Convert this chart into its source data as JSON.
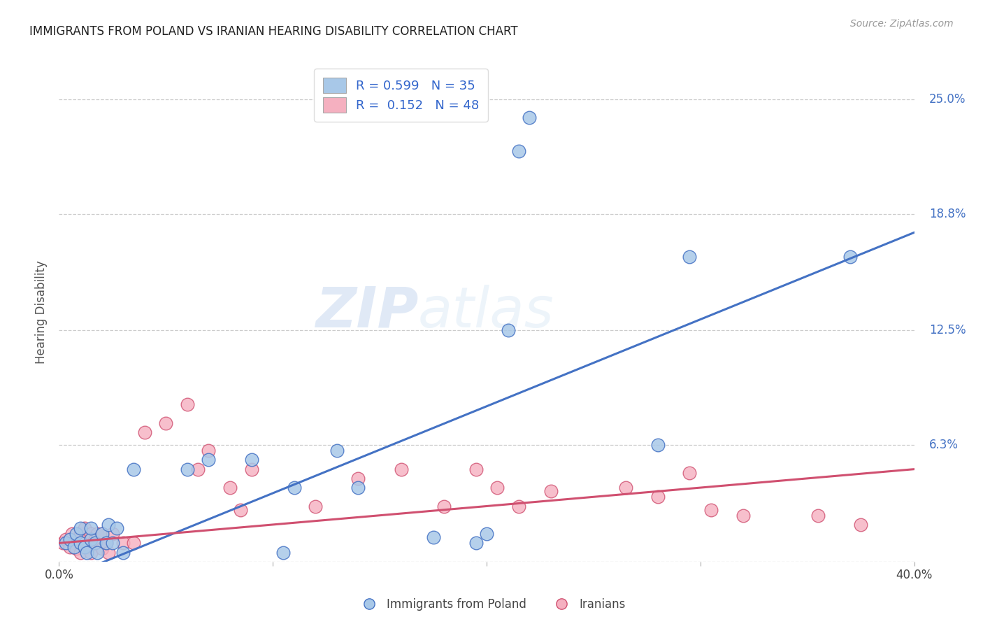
{
  "title": "IMMIGRANTS FROM POLAND VS IRANIAN HEARING DISABILITY CORRELATION CHART",
  "source": "Source: ZipAtlas.com",
  "xlabel_blue": "Immigrants from Poland",
  "xlabel_pink": "Iranians",
  "ylabel": "Hearing Disability",
  "r_blue": 0.599,
  "n_blue": 35,
  "r_pink": 0.152,
  "n_pink": 48,
  "xlim": [
    0.0,
    0.4
  ],
  "ylim": [
    0.0,
    0.27
  ],
  "yticks": [
    0.0,
    0.063,
    0.125,
    0.188,
    0.25
  ],
  "ytick_labels": [
    "",
    "6.3%",
    "12.5%",
    "18.8%",
    "25.0%"
  ],
  "xticks": [
    0.0,
    0.1,
    0.2,
    0.3,
    0.4
  ],
  "xtick_labels": [
    "0.0%",
    "",
    "",
    "",
    "40.0%"
  ],
  "color_blue": "#a8c8e8",
  "color_pink": "#f5b0c0",
  "line_color_blue": "#4472c4",
  "line_color_pink": "#d05070",
  "watermark_zip": "ZIP",
  "watermark_atlas": "atlas",
  "blue_x": [
    0.003,
    0.005,
    0.007,
    0.008,
    0.01,
    0.01,
    0.012,
    0.013,
    0.015,
    0.015,
    0.017,
    0.018,
    0.02,
    0.022,
    0.023,
    0.025,
    0.027,
    0.03,
    0.035,
    0.06,
    0.07,
    0.09,
    0.105,
    0.11,
    0.13,
    0.14,
    0.175,
    0.195,
    0.2,
    0.21,
    0.215,
    0.22,
    0.28,
    0.295,
    0.37
  ],
  "blue_y": [
    0.01,
    0.012,
    0.008,
    0.015,
    0.01,
    0.018,
    0.008,
    0.005,
    0.012,
    0.018,
    0.01,
    0.005,
    0.015,
    0.01,
    0.02,
    0.01,
    0.018,
    0.005,
    0.05,
    0.05,
    0.055,
    0.055,
    0.005,
    0.04,
    0.06,
    0.04,
    0.013,
    0.01,
    0.015,
    0.125,
    0.222,
    0.24,
    0.063,
    0.165,
    0.165
  ],
  "pink_x": [
    0.002,
    0.003,
    0.005,
    0.006,
    0.007,
    0.008,
    0.009,
    0.01,
    0.01,
    0.011,
    0.012,
    0.013,
    0.014,
    0.015,
    0.015,
    0.016,
    0.017,
    0.018,
    0.02,
    0.02,
    0.022,
    0.023,
    0.025,
    0.03,
    0.035,
    0.04,
    0.05,
    0.06,
    0.065,
    0.07,
    0.08,
    0.085,
    0.09,
    0.12,
    0.14,
    0.16,
    0.18,
    0.195,
    0.205,
    0.215,
    0.23,
    0.265,
    0.28,
    0.295,
    0.305,
    0.32,
    0.355,
    0.375
  ],
  "pink_y": [
    0.01,
    0.012,
    0.008,
    0.015,
    0.01,
    0.007,
    0.012,
    0.005,
    0.015,
    0.01,
    0.018,
    0.012,
    0.008,
    0.015,
    0.005,
    0.01,
    0.012,
    0.015,
    0.007,
    0.015,
    0.01,
    0.005,
    0.015,
    0.01,
    0.01,
    0.07,
    0.075,
    0.085,
    0.05,
    0.06,
    0.04,
    0.028,
    0.05,
    0.03,
    0.045,
    0.05,
    0.03,
    0.05,
    0.04,
    0.03,
    0.038,
    0.04,
    0.035,
    0.048,
    0.028,
    0.025,
    0.025,
    0.02
  ]
}
